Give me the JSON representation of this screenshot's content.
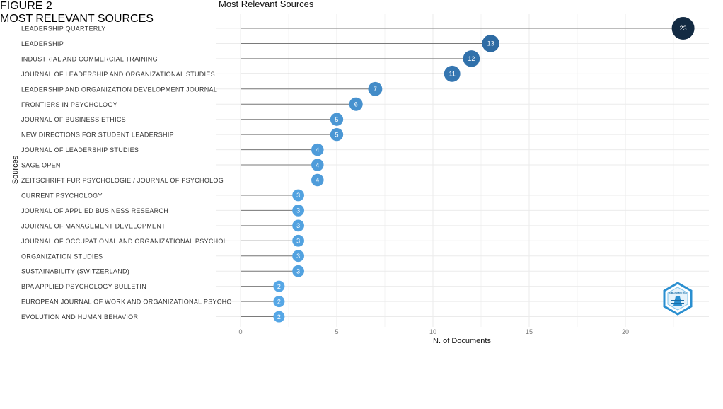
{
  "chart_data": {
    "type": "scatter",
    "title": "Most Relevant Sources",
    "xlabel": "N. of Documents",
    "ylabel": "Sources",
    "xlim": [
      0,
      24
    ],
    "xticks": [
      0,
      5,
      10,
      15,
      20
    ],
    "grid": true,
    "categories": [
      "LEADERSHIP QUARTERLY",
      "LEADERSHIP",
      "INDUSTRIAL AND COMMERCIAL TRAINING",
      "JOURNAL OF LEADERSHIP AND ORGANIZATIONAL STUDIES",
      "LEADERSHIP AND ORGANIZATION DEVELOPMENT JOURNAL",
      "FRONTIERS IN PSYCHOLOGY",
      "JOURNAL OF BUSINESS ETHICS",
      "NEW DIRECTIONS FOR STUDENT LEADERSHIP",
      "JOURNAL OF LEADERSHIP STUDIES",
      "SAGE OPEN",
      "ZEITSCHRIFT FUR PSYCHOLOGIE / JOURNAL OF PSYCHOLOG",
      "CURRENT PSYCHOLOGY",
      "JOURNAL OF APPLIED BUSINESS RESEARCH",
      "JOURNAL OF MANAGEMENT DEVELOPMENT",
      "JOURNAL OF OCCUPATIONAL AND ORGANIZATIONAL PSYCHOL",
      "ORGANIZATION STUDIES",
      "SUSTAINABILITY (SWITZERLAND)",
      "BPA APPLIED PSYCHOLOGY BULLETIN",
      "EUROPEAN JOURNAL OF WORK AND ORGANIZATIONAL PSYCHO",
      "EVOLUTION AND HUMAN BEHAVIOR"
    ],
    "values": [
      23,
      13,
      12,
      11,
      7,
      6,
      5,
      5,
      4,
      4,
      4,
      3,
      3,
      3,
      3,
      3,
      3,
      2,
      2,
      2
    ],
    "colors": {
      "low": "#56a7e6",
      "mid": "#2f6ea8",
      "high": "#132b43",
      "stem": "#7a7a7a",
      "grid": "#ebebeb"
    }
  },
  "caption": {
    "line1": "FIGURE 2",
    "line2": "MOST RELEVANT SOURCES"
  },
  "logo": {
    "name": "bibliometrix-logo",
    "text": "BIBLIOMETRIX"
  }
}
